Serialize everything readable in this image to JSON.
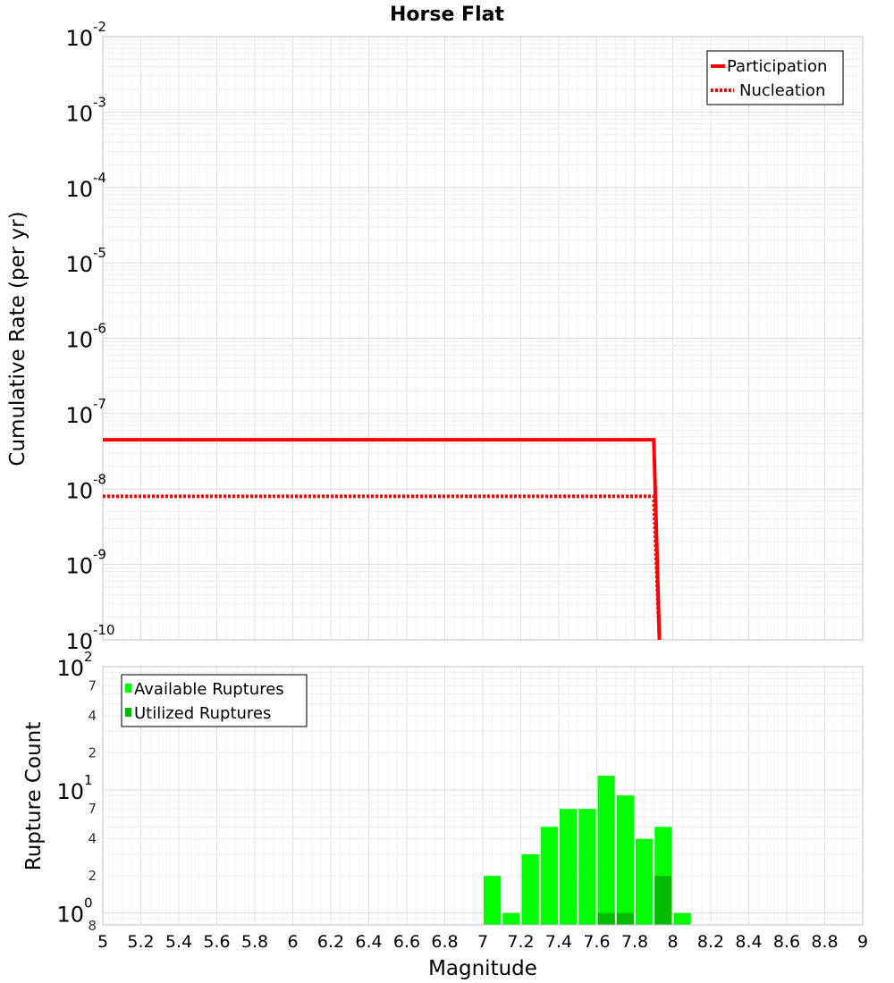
{
  "chart_data": [
    {
      "type": "line",
      "title": "Horse Flat",
      "xlabel": "Magnitude",
      "ylabel": "Cumulative Rate (per yr)",
      "xlim": [
        5,
        9
      ],
      "ylim": [
        1e-10,
        0.01
      ],
      "yscale": "log",
      "grid": true,
      "ytick_labels": [
        {
          "base": "10",
          "exp": "-10"
        },
        {
          "base": "10",
          "exp": "-9"
        },
        {
          "base": "10",
          "exp": "-8"
        },
        {
          "base": "10",
          "exp": "-7"
        },
        {
          "base": "10",
          "exp": "-6"
        },
        {
          "base": "10",
          "exp": "-5"
        },
        {
          "base": "10",
          "exp": "-4"
        },
        {
          "base": "10",
          "exp": "-3"
        },
        {
          "base": "10",
          "exp": "-2"
        }
      ],
      "legend_position": "top-right",
      "series": [
        {
          "name": "Participation",
          "style": "solid",
          "color": "#ff0000",
          "x": [
            5.0,
            7.9,
            7.93
          ],
          "y": [
            4.5e-08,
            4.5e-08,
            1e-10
          ]
        },
        {
          "name": "Nucleation",
          "style": "dotted",
          "color": "#ff0000",
          "x": [
            5.0,
            7.9,
            7.93
          ],
          "y": [
            8e-09,
            8e-09,
            1e-10
          ]
        }
      ]
    },
    {
      "type": "bar",
      "xlabel": "Magnitude",
      "ylabel": "Rupture Count",
      "xlim": [
        5,
        9
      ],
      "ylim": [
        0.8,
        100
      ],
      "yscale": "log",
      "grid": true,
      "xticks": [
        "5",
        "5.2",
        "5.4",
        "5.6",
        "5.8",
        "6",
        "6.2",
        "6.4",
        "6.6",
        "6.8",
        "7",
        "7.2",
        "7.4",
        "7.6",
        "7.8",
        "8",
        "8.2",
        "8.4",
        "8.6",
        "8.8",
        "9"
      ],
      "ytick_labels": [
        {
          "base": "10",
          "exp": "0"
        },
        {
          "base": "10",
          "exp": "1"
        },
        {
          "base": "10",
          "exp": "2"
        }
      ],
      "yminor_labels": [
        "8",
        "2",
        "4",
        "7",
        "2",
        "4",
        "7"
      ],
      "legend_position": "top-left",
      "bin_width": 0.1,
      "series": [
        {
          "name": "Available Ruptures",
          "color": "#00ff00",
          "x": [
            7.05,
            7.15,
            7.25,
            7.35,
            7.45,
            7.55,
            7.65,
            7.75,
            7.85,
            7.95,
            8.05
          ],
          "values": [
            2,
            1,
            3,
            5,
            7,
            7,
            13,
            9,
            4,
            5,
            1
          ]
        },
        {
          "name": "Utilized Ruptures",
          "color": "#00bb00",
          "x": [
            7.65,
            7.75,
            7.95
          ],
          "values": [
            1,
            1,
            2
          ]
        }
      ]
    }
  ]
}
